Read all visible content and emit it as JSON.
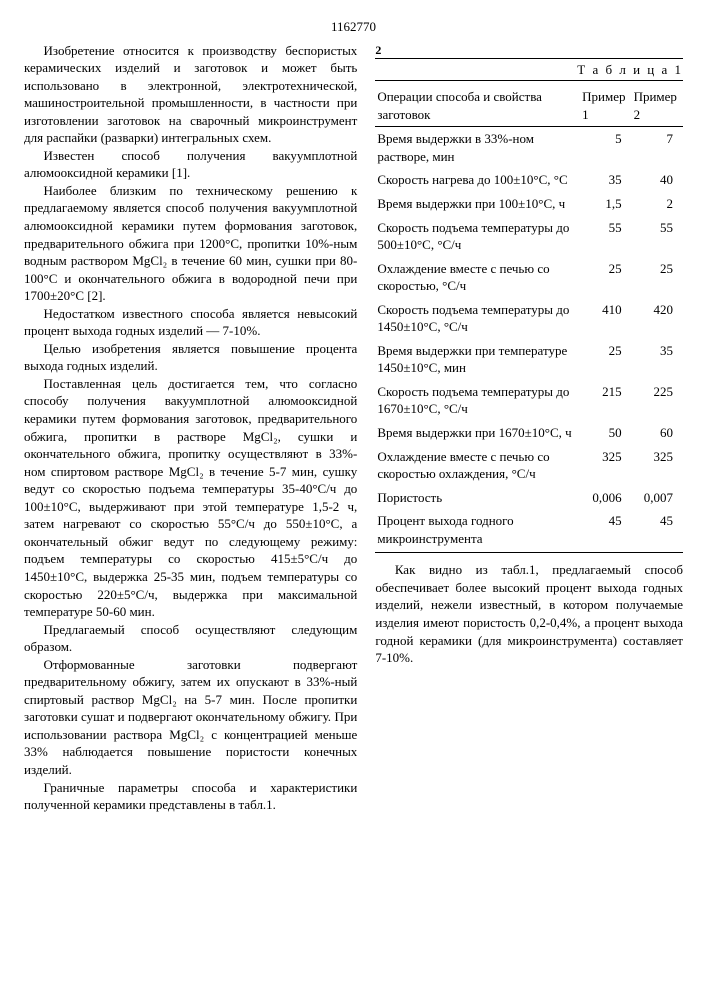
{
  "page_number": "1162770",
  "top_right_num": "2",
  "left_column": {
    "p1": "Изобретение относится к производству беспористых керамических изделий и заготовок и может быть использовано в электронной, электротехнической, машиностроительной промышленности, в частности при изготовлении заготовок на сварочный микроинструмент для распайки (разварки) интегральных схем.",
    "p2": "Известен способ получения вакуумплотной алюмооксидной керамики [1].",
    "p3": "Наиболее близким по техническому решению к предлагаемому является способ получения вакуумплотной алюмооксидной керамики путем формования заготовок, предварительного обжига при 1200°С, пропитки 10%-ным водным раствором MgCl₂ в течение 60 мин, сушки при 80-100°С и окончательного обжига в водородной печи при 1700±20°С [2].",
    "p4": "Недостатком известного способа является невысокий процент выхода годных изделий — 7-10%.",
    "p5": "Целью изобретения является повышение процента выхода годных изделий.",
    "p6": "Поставленная цель достигается тем, что согласно способу получения вакуумплотной алюмооксидной керамики путем формования заготовок, предварительного обжига, пропитки в растворе MgCl₂, сушки и окончательного обжига, пропитку осуществляют в 33%-ном спиртовом растворе MgCl₂ в течение 5-7 мин, сушку ведут со скоростью подъема температуры 35-40°С/ч до 100±10°С, выдерживают при этой температуре 1,5-2 ч, затем нагревают со скоростью 55°С/ч до 550±10°С, а окончательный обжиг ведут по следующему режиму: подъем температуры со скоростью 415±5°С/ч до 1450±10°С, выдержка 25-35 мин, подъем температуры со скоростью 220±5°С/ч, выдержка при максимальной температуре 50-60 мин.",
    "p7": "Предлагаемый способ осуществляют следующим образом.",
    "p8": "Отформованные заготовки подвергают предварительному обжигу, затем их опускают в 33%-ный спиртовый раствор MgCl₂ на 5-7 мин. После пропитки заготовки сушат и подвергают окончательному обжигу. При использовании раствора MgCl₂ с концентрацией меньше 33% наблюдается повышение пористости конечных изделий.",
    "p9": "Граничные параметры способа и характеристики полученной керамики представлены в табл.1."
  },
  "line_markers": [
    "5",
    "10",
    "15",
    "20",
    "25",
    "30",
    "35",
    "40",
    "45",
    "50",
    "55"
  ],
  "table": {
    "caption": "Т а б л и ц а 1",
    "header": [
      "Операции способа и свойства заготовок",
      "Пример 1",
      "Пример 2"
    ],
    "rows": [
      {
        "label": "Время выдержки в 33%-ном растворе, мин",
        "v1": "5",
        "v2": "7"
      },
      {
        "label": "Скорость нагрева до 100±10°С, °С",
        "v1": "35",
        "v2": "40"
      },
      {
        "label": "Время выдержки при 100±10°С, ч",
        "v1": "1,5",
        "v2": "2"
      },
      {
        "label": "Скорость подъема температуры до 500±10°С, °С/ч",
        "v1": "55",
        "v2": "55"
      },
      {
        "label": "Охлаждение вместе с печью со скоростью, °С/ч",
        "v1": "25",
        "v2": "25"
      },
      {
        "label": "Скорость подъема температуры до 1450±10°С, °С/ч",
        "v1": "410",
        "v2": "420"
      },
      {
        "label": "Время выдержки при температуре 1450±10°С, мин",
        "v1": "25",
        "v2": "35"
      },
      {
        "label": "Скорость подъема температуры до 1670±10°С, °С/ч",
        "v1": "215",
        "v2": "225"
      },
      {
        "label": "Время выдержки при 1670±10°С, ч",
        "v1": "50",
        "v2": "60"
      },
      {
        "label": "Охлаждение вместе с печью со скоростью охлаждения, °С/ч",
        "v1": "325",
        "v2": "325"
      },
      {
        "label": "Пористость",
        "v1": "0,006",
        "v2": "0,007"
      },
      {
        "label": "Процент выхода годного микроинструмента",
        "v1": "45",
        "v2": "45"
      }
    ]
  },
  "below_table": "Как видно из табл.1, предлагаемый способ обеспечивает более высокий процент выхода годных изделий, нежели известный, в котором получаемые изделия имеют пористость 0,2-0,4%, а процент выхода годной керамики (для микроинструмента) составляет 7-10%."
}
